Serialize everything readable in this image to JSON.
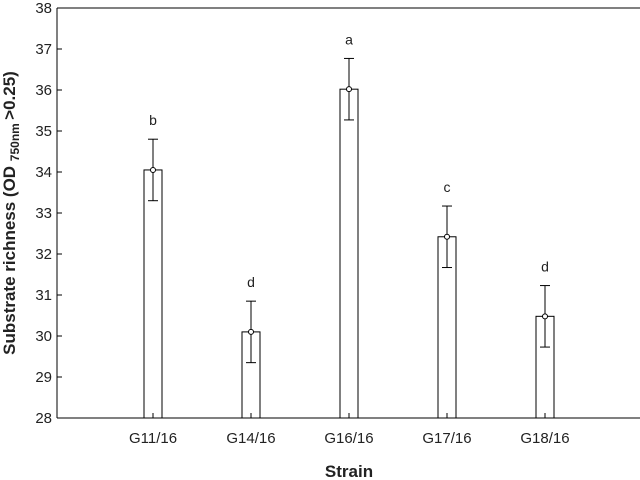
{
  "chart_data": {
    "type": "bar",
    "xlabel": "Strain",
    "ylabel": {
      "main": "Substrate richness (OD",
      "subscript": "750nm",
      "suffix": ">0.25)"
    },
    "categories": [
      "G11/16",
      "G14/16",
      "G16/16",
      "G17/16",
      "G18/16"
    ],
    "values": [
      34.05,
      30.1,
      36.02,
      32.42,
      30.48
    ],
    "errors": [
      0.75,
      0.75,
      0.75,
      0.75,
      0.75
    ],
    "significance": [
      "b",
      "d",
      "a",
      "c",
      "d"
    ],
    "ylim": [
      28,
      38
    ],
    "yticks": [
      "28",
      "29",
      "30",
      "31",
      "32",
      "33",
      "34",
      "35",
      "36",
      "37",
      "38"
    ],
    "grid": false,
    "legend": "none"
  }
}
